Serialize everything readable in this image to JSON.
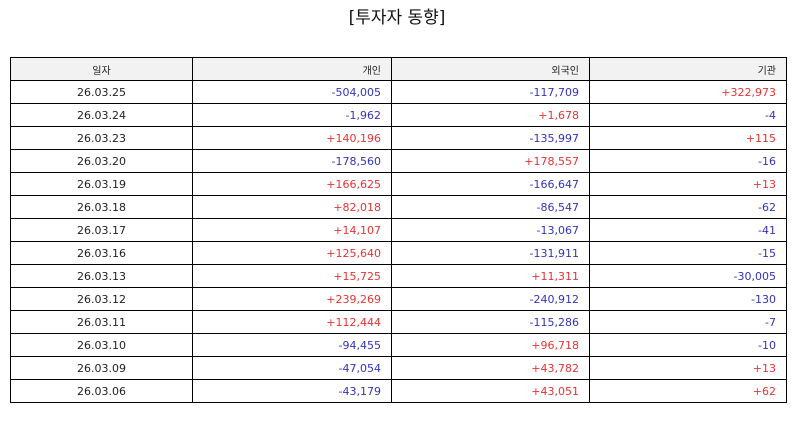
{
  "title": "[투자자 동향]",
  "columns": {
    "date": "일자",
    "individual": "개인",
    "foreign": "외국인",
    "institution": "기관"
  },
  "colors": {
    "positive": "#e53333",
    "negative": "#3333bb"
  },
  "rows": [
    {
      "date": "26.03.25",
      "individual": "-504,005",
      "foreign": "-117,709",
      "institution": "+322,973"
    },
    {
      "date": "26.03.24",
      "individual": "-1,962",
      "foreign": "+1,678",
      "institution": "-4"
    },
    {
      "date": "26.03.23",
      "individual": "+140,196",
      "foreign": "-135,997",
      "institution": "+115"
    },
    {
      "date": "26.03.20",
      "individual": "-178,560",
      "foreign": "+178,557",
      "institution": "-16"
    },
    {
      "date": "26.03.19",
      "individual": "+166,625",
      "foreign": "-166,647",
      "institution": "+13"
    },
    {
      "date": "26.03.18",
      "individual": "+82,018",
      "foreign": "-86,547",
      "institution": "-62"
    },
    {
      "date": "26.03.17",
      "individual": "+14,107",
      "foreign": "-13,067",
      "institution": "-41"
    },
    {
      "date": "26.03.16",
      "individual": "+125,640",
      "foreign": "-131,911",
      "institution": "-15"
    },
    {
      "date": "26.03.13",
      "individual": "+15,725",
      "foreign": "+11,311",
      "institution": "-30,005"
    },
    {
      "date": "26.03.12",
      "individual": "+239,269",
      "foreign": "-240,912",
      "institution": "-130"
    },
    {
      "date": "26.03.11",
      "individual": "+112,444",
      "foreign": "-115,286",
      "institution": "-7"
    },
    {
      "date": "26.03.10",
      "individual": "-94,455",
      "foreign": "+96,718",
      "institution": "-10"
    },
    {
      "date": "26.03.09",
      "individual": "-47,054",
      "foreign": "+43,782",
      "institution": "+13"
    },
    {
      "date": "26.03.06",
      "individual": "-43,179",
      "foreign": "+43,051",
      "institution": "+62"
    }
  ]
}
